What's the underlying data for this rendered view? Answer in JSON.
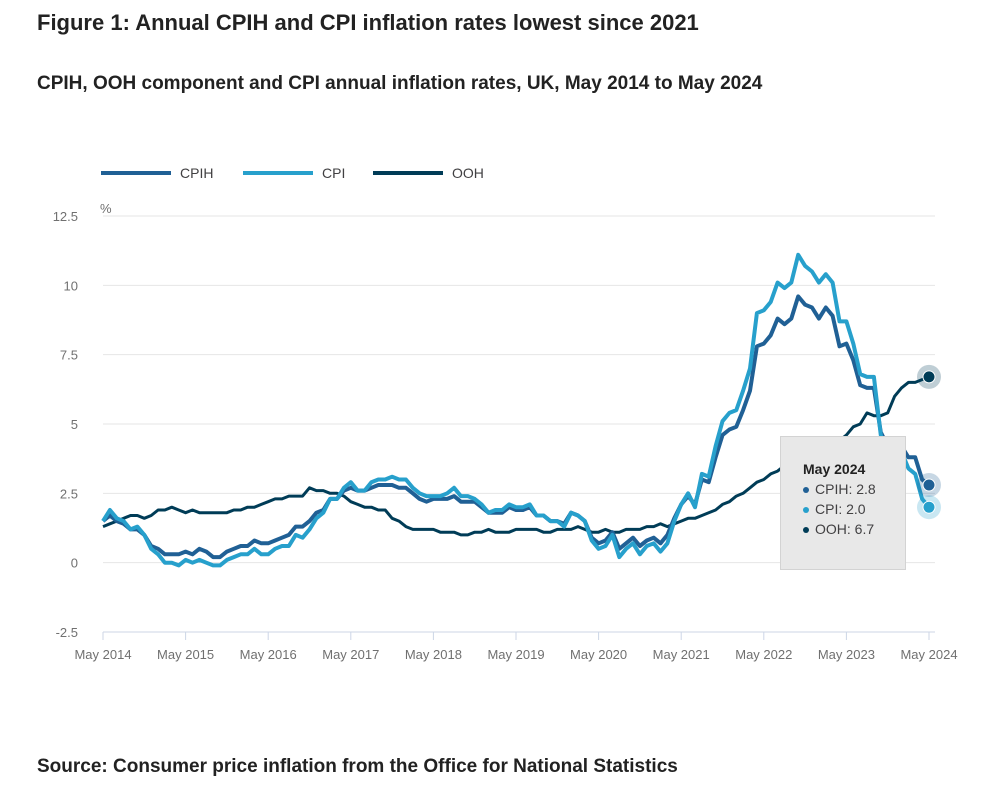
{
  "title": "Figure 1: Annual CPIH and CPI inflation rates lowest since 2021",
  "subtitle": "CPIH, OOH component and CPI annual inflation rates, UK, May 2014 to May 2024",
  "source": "Source: Consumer price inflation from the Office for National Statistics",
  "colors": {
    "CPIH": "#206095",
    "CPI": "#27a0cc",
    "OOH": "#003c57"
  },
  "tooltip": {
    "title": "May 2024",
    "rows": [
      "CPIH: 2.8",
      "CPI: 2.0",
      "OOH: 6.7"
    ]
  },
  "chart_data": {
    "type": "line",
    "title": "",
    "xlabel": "",
    "ylabel": "%",
    "ylim": [
      -2.5,
      12.5
    ],
    "yticks": [
      "12.5",
      "10",
      "7.5",
      "5",
      "2.5",
      "0",
      "-2.5"
    ],
    "ytick_values": [
      12.5,
      10,
      7.5,
      5,
      2.5,
      0,
      -2.5
    ],
    "xticks": [
      "May 2014",
      "May 2015",
      "May 2016",
      "May 2017",
      "May 2018",
      "May 2019",
      "May 2020",
      "May 2021",
      "May 2022",
      "May 2023",
      "May 2024"
    ],
    "x_start": "May 2014",
    "x_end": "May 2024",
    "frequency": "monthly",
    "grid": true,
    "legend_position": "top-left",
    "series": [
      {
        "name": "CPIH",
        "values": [
          1.5,
          1.7,
          1.5,
          1.4,
          1.2,
          1.2,
          1.0,
          0.6,
          0.5,
          0.3,
          0.3,
          0.3,
          0.4,
          0.3,
          0.5,
          0.4,
          0.2,
          0.2,
          0.4,
          0.5,
          0.6,
          0.6,
          0.8,
          0.7,
          0.7,
          0.8,
          0.9,
          1.0,
          1.3,
          1.3,
          1.5,
          1.8,
          1.9,
          2.3,
          2.3,
          2.6,
          2.7,
          2.6,
          2.6,
          2.7,
          2.8,
          2.8,
          2.8,
          2.7,
          2.7,
          2.5,
          2.3,
          2.2,
          2.3,
          2.3,
          2.3,
          2.4,
          2.2,
          2.2,
          2.2,
          2.0,
          1.8,
          1.8,
          1.8,
          2.0,
          1.9,
          1.9,
          2.0,
          1.7,
          1.7,
          1.5,
          1.5,
          1.4,
          1.8,
          1.7,
          1.5,
          0.9,
          0.7,
          0.8,
          1.1,
          0.5,
          0.7,
          0.9,
          0.6,
          0.8,
          0.9,
          0.7,
          1.0,
          1.6,
          2.1,
          2.4,
          2.1,
          3.0,
          2.9,
          3.8,
          4.6,
          4.8,
          4.9,
          5.5,
          6.2,
          7.8,
          7.9,
          8.2,
          8.8,
          8.6,
          8.8,
          9.6,
          9.3,
          9.2,
          8.8,
          9.2,
          8.9,
          7.8,
          7.9,
          7.3,
          6.4,
          6.3,
          6.3,
          4.7,
          4.2,
          4.2,
          4.2,
          3.8,
          3.8,
          3.0,
          2.8
        ]
      },
      {
        "name": "CPI",
        "values": [
          1.5,
          1.9,
          1.6,
          1.5,
          1.2,
          1.3,
          1.0,
          0.5,
          0.3,
          0.0,
          0.0,
          -0.1,
          0.1,
          0.0,
          0.1,
          0.0,
          -0.1,
          -0.1,
          0.1,
          0.2,
          0.3,
          0.3,
          0.5,
          0.3,
          0.3,
          0.5,
          0.6,
          0.6,
          1.0,
          0.9,
          1.2,
          1.6,
          1.8,
          2.3,
          2.3,
          2.7,
          2.9,
          2.6,
          2.6,
          2.9,
          3.0,
          3.0,
          3.1,
          3.0,
          3.0,
          2.7,
          2.5,
          2.4,
          2.4,
          2.4,
          2.5,
          2.7,
          2.4,
          2.4,
          2.3,
          2.1,
          1.8,
          1.9,
          1.9,
          2.1,
          2.0,
          2.0,
          2.1,
          1.7,
          1.7,
          1.5,
          1.5,
          1.3,
          1.8,
          1.7,
          1.5,
          0.8,
          0.5,
          0.6,
          1.0,
          0.2,
          0.5,
          0.7,
          0.3,
          0.6,
          0.7,
          0.4,
          0.7,
          1.5,
          2.1,
          2.5,
          2.0,
          3.2,
          3.1,
          4.2,
          5.1,
          5.4,
          5.5,
          6.2,
          7.0,
          9.0,
          9.1,
          9.4,
          10.1,
          9.9,
          10.1,
          11.1,
          10.7,
          10.5,
          10.1,
          10.4,
          10.1,
          8.7,
          8.7,
          7.9,
          6.8,
          6.7,
          6.7,
          4.6,
          3.9,
          4.0,
          4.0,
          3.4,
          3.2,
          2.3,
          2.0
        ]
      },
      {
        "name": "OOH",
        "values": [
          1.3,
          1.4,
          1.5,
          1.6,
          1.7,
          1.7,
          1.6,
          1.7,
          1.9,
          1.9,
          2.0,
          1.9,
          1.8,
          1.9,
          1.8,
          1.8,
          1.8,
          1.8,
          1.8,
          1.9,
          1.9,
          2.0,
          2.0,
          2.1,
          2.2,
          2.3,
          2.3,
          2.4,
          2.4,
          2.4,
          2.7,
          2.6,
          2.6,
          2.5,
          2.5,
          2.4,
          2.2,
          2.1,
          2.0,
          2.0,
          1.9,
          1.9,
          1.6,
          1.5,
          1.3,
          1.2,
          1.2,
          1.2,
          1.2,
          1.1,
          1.1,
          1.1,
          1.0,
          1.0,
          1.1,
          1.1,
          1.2,
          1.1,
          1.1,
          1.1,
          1.2,
          1.2,
          1.2,
          1.2,
          1.1,
          1.1,
          1.2,
          1.2,
          1.2,
          1.3,
          1.2,
          1.1,
          1.1,
          1.2,
          1.1,
          1.1,
          1.2,
          1.2,
          1.2,
          1.3,
          1.3,
          1.4,
          1.3,
          1.4,
          1.5,
          1.6,
          1.6,
          1.7,
          1.8,
          1.9,
          2.1,
          2.2,
          2.4,
          2.5,
          2.7,
          2.9,
          3.0,
          3.2,
          3.3,
          3.5,
          3.6,
          3.7,
          3.8,
          3.8,
          4.0,
          4.0,
          4.2,
          4.4,
          4.6,
          4.9,
          5.0,
          5.4,
          5.3,
          5.3,
          5.4,
          6.0,
          6.3,
          6.5,
          6.5,
          6.6,
          6.7
        ]
      }
    ]
  }
}
